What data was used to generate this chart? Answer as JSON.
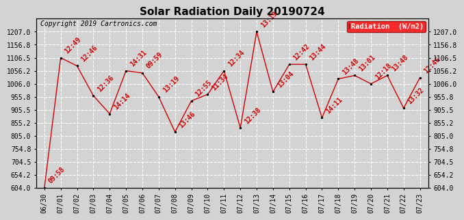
{
  "title": "Solar Radiation Daily 20190724",
  "copyright": "Copyright 2019 Cartronics.com",
  "legend_label": "Radiation  (W/m2)",
  "x_labels": [
    "06/30",
    "07/01",
    "07/02",
    "07/03",
    "07/04",
    "07/05",
    "07/06",
    "07/07",
    "07/08",
    "07/09",
    "07/10",
    "07/11",
    "07/12",
    "07/13",
    "07/14",
    "07/15",
    "07/16",
    "07/17",
    "07/18",
    "07/19",
    "07/20",
    "07/21",
    "07/22",
    "07/23"
  ],
  "y_values": [
    604.0,
    1106.5,
    1075.0,
    960.0,
    890.0,
    1056.2,
    1048.0,
    955.8,
    820.0,
    940.0,
    965.0,
    1056.2,
    836.0,
    1207.0,
    975.0,
    1081.0,
    1081.0,
    875.0,
    1025.0,
    1038.0,
    1006.0,
    1038.0,
    912.0,
    1030.0
  ],
  "time_labels": [
    "09:58",
    "12:49",
    "12:46",
    "12:36",
    "14:14",
    "14:31",
    "09:59",
    "13:19",
    "13:46",
    "12:55",
    "11:34",
    "12:34",
    "12:38",
    "13:19",
    "13:04",
    "12:42",
    "13:44",
    "14:11",
    "13:48",
    "13:01",
    "12:18",
    "13:48",
    "13:32",
    "12:46"
  ],
  "ylim_min": 604.0,
  "ylim_max": 1257.0,
  "yticks": [
    604.0,
    654.2,
    704.5,
    754.8,
    805.0,
    855.2,
    905.5,
    955.8,
    1006.0,
    1056.2,
    1106.5,
    1156.8,
    1207.0
  ],
  "line_color": "#cc0000",
  "dot_color": "#000000",
  "bg_color": "#d3d3d3",
  "grid_color": "#ffffff",
  "title_fontsize": 11,
  "tick_fontsize": 7,
  "annot_fontsize": 7,
  "copy_fontsize": 7
}
